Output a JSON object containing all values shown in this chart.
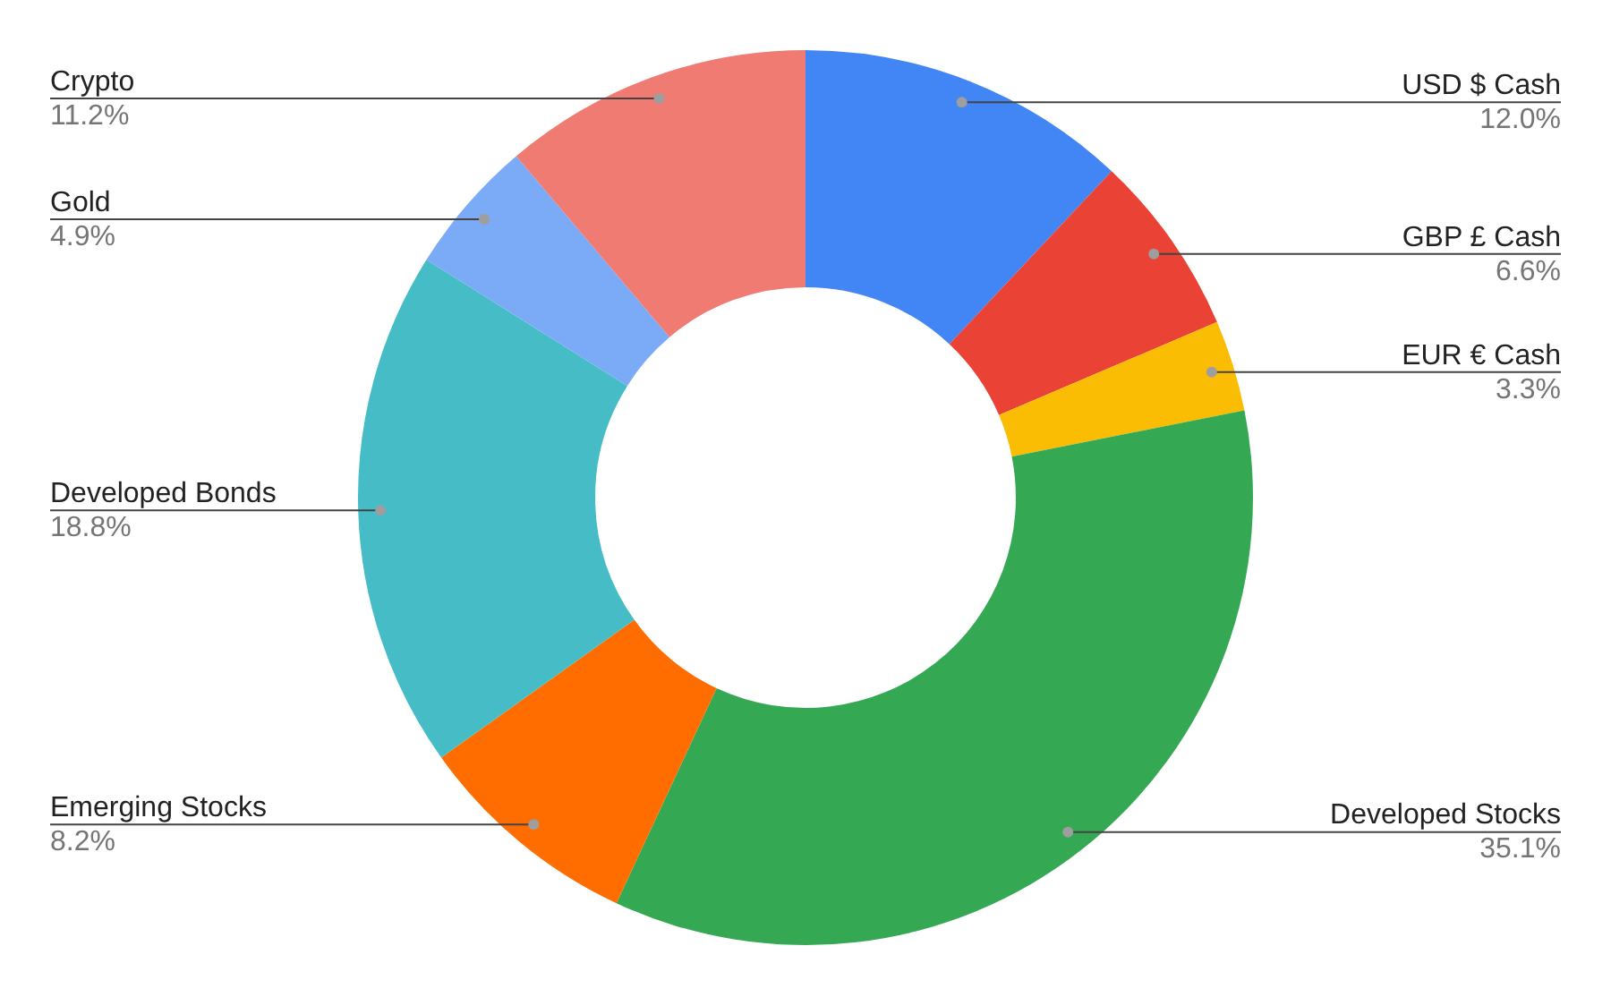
{
  "chart_data": {
    "type": "donut",
    "categories": [
      "USD $ Cash",
      "GBP £ Cash",
      "EUR € Cash",
      "Developed Stocks",
      "Emerging Stocks",
      "Developed Bonds",
      "Gold",
      "Crypto"
    ],
    "values": [
      12.0,
      6.6,
      3.3,
      35.1,
      8.2,
      18.8,
      4.9,
      11.2
    ],
    "value_labels": [
      "12.0%",
      "6.6%",
      "3.3%",
      "35.1%",
      "8.2%",
      "18.8%",
      "4.9%",
      "11.2%"
    ],
    "colors": [
      "#4285f4",
      "#ea4335",
      "#fbbc04",
      "#34a853",
      "#ff6d01",
      "#46bdc6",
      "#7baaf7",
      "#f07b72"
    ],
    "legend": false
  }
}
